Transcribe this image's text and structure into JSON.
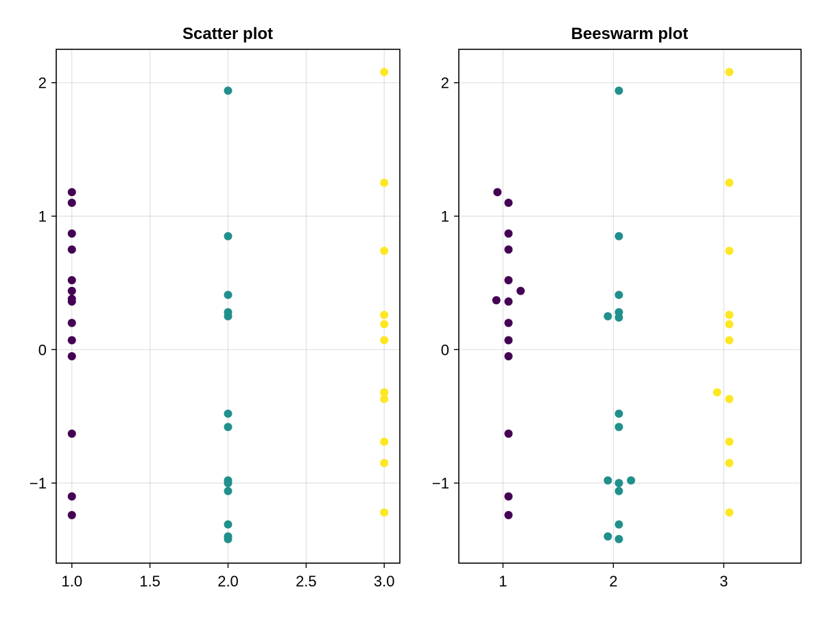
{
  "chart_data": [
    {
      "type": "scatter",
      "title": "Scatter plot",
      "xlim": [
        0.9,
        3.1
      ],
      "ylim": [
        -1.6,
        2.25
      ],
      "x_ticks": [
        1.0,
        1.5,
        2.0,
        2.5,
        3.0
      ],
      "x_tick_labels": [
        "1.0",
        "1.5",
        "2.0",
        "2.5",
        "3.0"
      ],
      "y_ticks": [
        -1,
        0,
        1,
        2
      ],
      "y_tick_labels": [
        "−1",
        "0",
        "1",
        "2"
      ],
      "grid": true,
      "series": [
        {
          "color": "#440154",
          "points": [
            [
              1,
              1.18
            ],
            [
              1,
              1.1
            ],
            [
              1,
              0.87
            ],
            [
              1,
              0.75
            ],
            [
              1,
              0.52
            ],
            [
              1,
              0.44
            ],
            [
              1,
              0.38
            ],
            [
              1,
              0.36
            ],
            [
              1,
              0.2
            ],
            [
              1,
              0.07
            ],
            [
              1,
              -0.05
            ],
            [
              1,
              -0.63
            ],
            [
              1,
              -1.1
            ],
            [
              1,
              -1.24
            ]
          ]
        },
        {
          "color": "#21908C",
          "points": [
            [
              2,
              1.94
            ],
            [
              2,
              0.85
            ],
            [
              2,
              0.41
            ],
            [
              2,
              0.28
            ],
            [
              2,
              0.25
            ],
            [
              2,
              -0.48
            ],
            [
              2,
              -0.58
            ],
            [
              2,
              -0.98
            ],
            [
              2,
              -1.0
            ],
            [
              2,
              -1.06
            ],
            [
              2,
              -1.31
            ],
            [
              2,
              -1.4
            ],
            [
              2,
              -1.42
            ]
          ]
        },
        {
          "color": "#FDE725",
          "points": [
            [
              3,
              2.08
            ],
            [
              3,
              1.25
            ],
            [
              3,
              0.74
            ],
            [
              3,
              0.26
            ],
            [
              3,
              0.19
            ],
            [
              3,
              0.07
            ],
            [
              3,
              -0.32
            ],
            [
              3,
              -0.37
            ],
            [
              3,
              -0.69
            ],
            [
              3,
              -0.85
            ],
            [
              3,
              -1.22
            ]
          ]
        }
      ]
    },
    {
      "type": "scatter",
      "title": "Beeswarm plot",
      "xlim": [
        0.6,
        3.7
      ],
      "ylim": [
        -1.6,
        2.25
      ],
      "x_ticks": [
        1,
        2,
        3
      ],
      "x_tick_labels": [
        "1",
        "2",
        "3"
      ],
      "y_ticks": [
        -1,
        0,
        1,
        2
      ],
      "y_tick_labels": [
        "−1",
        "0",
        "1",
        "2"
      ],
      "grid": true,
      "series": [
        {
          "color": "#440154",
          "points": [
            [
              0.95,
              1.18
            ],
            [
              1.05,
              1.1
            ],
            [
              1.05,
              0.87
            ],
            [
              1.05,
              0.75
            ],
            [
              1.05,
              0.52
            ],
            [
              1.16,
              0.44
            ],
            [
              0.94,
              0.37
            ],
            [
              1.05,
              0.36
            ],
            [
              1.05,
              0.2
            ],
            [
              1.05,
              0.07
            ],
            [
              1.05,
              -0.05
            ],
            [
              1.05,
              -0.63
            ],
            [
              1.05,
              -1.1
            ],
            [
              1.05,
              -1.24
            ]
          ]
        },
        {
          "color": "#21908C",
          "points": [
            [
              2.05,
              1.94
            ],
            [
              2.05,
              0.85
            ],
            [
              2.05,
              0.41
            ],
            [
              2.05,
              0.28
            ],
            [
              1.95,
              0.25
            ],
            [
              2.05,
              0.24
            ],
            [
              2.05,
              -0.48
            ],
            [
              2.05,
              -0.58
            ],
            [
              1.95,
              -0.98
            ],
            [
              2.16,
              -0.98
            ],
            [
              2.05,
              -1.0
            ],
            [
              2.05,
              -1.06
            ],
            [
              2.05,
              -1.31
            ],
            [
              1.95,
              -1.4
            ],
            [
              2.05,
              -1.42
            ]
          ]
        },
        {
          "color": "#FDE725",
          "points": [
            [
              3.05,
              2.08
            ],
            [
              3.05,
              1.25
            ],
            [
              3.05,
              0.74
            ],
            [
              3.05,
              0.26
            ],
            [
              3.05,
              0.19
            ],
            [
              3.05,
              0.07
            ],
            [
              2.94,
              -0.32
            ],
            [
              3.05,
              -0.37
            ],
            [
              3.05,
              -0.69
            ],
            [
              3.05,
              -0.85
            ],
            [
              3.05,
              -1.22
            ]
          ]
        }
      ]
    }
  ]
}
